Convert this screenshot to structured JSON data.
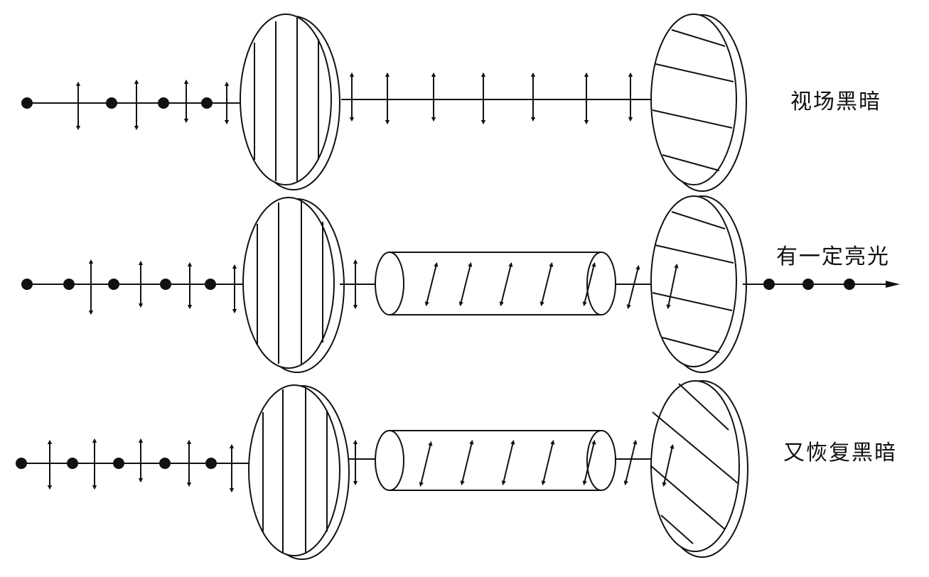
{
  "rows": [
    {
      "label": "视场黑暗",
      "has_sample": false,
      "analyzer_stripes": "horizontal",
      "output_light": false
    },
    {
      "label": "有一定亮光",
      "has_sample": true,
      "analyzer_stripes": "horizontal",
      "output_light": true
    },
    {
      "label": "又恢复黑暗",
      "has_sample": true,
      "analyzer_stripes": "diagonal",
      "output_light": false
    }
  ],
  "colors": {
    "ink": "#111111",
    "background": "#ffffff"
  }
}
